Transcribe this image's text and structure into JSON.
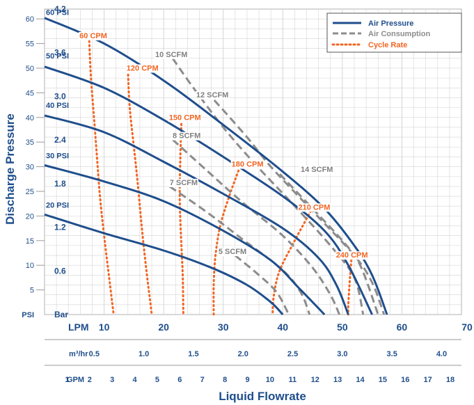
{
  "chart_data": {
    "type": "line",
    "title": "",
    "ylabel": "Discharge Pressure",
    "xlabel": "Liquid Flowrate",
    "grid": true,
    "legend_position": "top-right",
    "colors": {
      "pressure": "#1f4e8c",
      "consumption": "#8c8c8c",
      "cycle": "#f26522",
      "grid": "#c8c8c8"
    },
    "y_axis_psi": {
      "unit": "PSI",
      "ticks": [
        5,
        10,
        15,
        20,
        25,
        30,
        35,
        40,
        45,
        50,
        55,
        60
      ],
      "ylim": [
        0,
        62
      ]
    },
    "y_axis_bar": {
      "unit": "Bar",
      "ticks": [
        "0.6",
        "1.2",
        "1.8",
        "2.4",
        "3.0",
        "3.6",
        "4.2"
      ]
    },
    "x_axis_lpm": {
      "unit": "LPM",
      "ticks": [
        10,
        20,
        30,
        40,
        50,
        60,
        70
      ],
      "xlim": [
        0,
        70
      ]
    },
    "x_axis_m3hr": {
      "unit": "m³/hr",
      "ticks": [
        "0.5",
        "1.0",
        "1.5",
        "2.0",
        "2.5",
        "3.0",
        "3.5",
        "4.0"
      ]
    },
    "x_axis_gpm": {
      "unit": "GPM",
      "ticks": [
        "1",
        "2",
        "3",
        "4",
        "5",
        "6",
        "7",
        "8",
        "9",
        "10",
        "11",
        "12",
        "13",
        "14",
        "15",
        "16",
        "17",
        "18"
      ]
    },
    "legend": [
      {
        "key": "pressure",
        "label": "Air Pressure"
      },
      {
        "key": "consumption",
        "label": "Air Consumption"
      },
      {
        "key": "cycle",
        "label": "Cycle Rate"
      }
    ],
    "air_pressure": [
      {
        "label": "60 PSI",
        "points": [
          [
            0,
            60.2
          ],
          [
            10,
            55.0
          ],
          [
            20,
            47.5
          ],
          [
            30,
            38.5
          ],
          [
            40,
            29.0
          ],
          [
            47,
            21.5
          ],
          [
            52,
            14.0
          ],
          [
            55,
            8.0
          ],
          [
            57.5,
            0
          ]
        ]
      },
      {
        "label": "50 PSI",
        "points": [
          [
            0,
            50.3
          ],
          [
            10,
            46.0
          ],
          [
            20,
            39.5
          ],
          [
            30,
            32.0
          ],
          [
            40,
            24.0
          ],
          [
            47,
            17.0
          ],
          [
            51,
            10.0
          ],
          [
            55,
            0
          ]
        ]
      },
      {
        "label": "40 PSI",
        "points": [
          [
            0,
            40.4
          ],
          [
            10,
            37.0
          ],
          [
            20,
            31.0
          ],
          [
            30,
            24.5
          ],
          [
            40,
            17.5
          ],
          [
            46,
            11.5
          ],
          [
            49,
            6.0
          ],
          [
            51,
            0
          ]
        ]
      },
      {
        "label": "30 PSI",
        "points": [
          [
            0,
            30.3
          ],
          [
            10,
            27.0
          ],
          [
            20,
            23.0
          ],
          [
            30,
            17.0
          ],
          [
            38,
            11.0
          ],
          [
            43,
            5.0
          ],
          [
            47,
            0
          ]
        ]
      },
      {
        "label": "20 PSI",
        "points": [
          [
            0,
            20.3
          ],
          [
            10,
            16.5
          ],
          [
            20,
            13.0
          ],
          [
            28,
            9.5
          ],
          [
            34,
            6.0
          ],
          [
            38,
            2.5
          ],
          [
            40,
            0
          ]
        ]
      }
    ],
    "air_consumption": [
      {
        "label": "12 SCFM",
        "points": [
          [
            28.5,
            43.5
          ],
          [
            34,
            36.0
          ],
          [
            38,
            30.0
          ],
          [
            45,
            21.0
          ],
          [
            52,
            12.0
          ],
          [
            55,
            6.5
          ],
          [
            57,
            0
          ]
        ]
      },
      {
        "label": "14 SCFM",
        "points": [
          [
            39.5,
            28.5
          ],
          [
            45,
            21.5
          ],
          [
            50,
            15.0
          ],
          [
            53,
            10.0
          ],
          [
            56,
            0
          ]
        ]
      },
      {
        "label": "10 SCFM",
        "points": [
          [
            21.5,
            52.0
          ],
          [
            25,
            46.0
          ],
          [
            30,
            38.0
          ],
          [
            35,
            31.0
          ],
          [
            42,
            22.0
          ],
          [
            48,
            14.0
          ],
          [
            52,
            7.5
          ],
          [
            53.5,
            0
          ]
        ]
      },
      {
        "label": "8 SCFM",
        "points": [
          [
            21.5,
            35.5
          ],
          [
            27,
            29.5
          ],
          [
            33,
            23.0
          ],
          [
            40,
            16.0
          ],
          [
            45,
            9.5
          ],
          [
            48,
            4.0
          ],
          [
            49.5,
            0
          ]
        ]
      },
      {
        "label": "7 SCFM",
        "points": [
          [
            21.0,
            26.0
          ],
          [
            27,
            21.0
          ],
          [
            33,
            15.5
          ],
          [
            40,
            9.0
          ],
          [
            43,
            4.5
          ],
          [
            44.5,
            0
          ]
        ]
      },
      {
        "label": "5 SCFM",
        "points": [
          [
            32,
            12.0
          ],
          [
            36,
            8.0
          ],
          [
            39,
            4.5
          ],
          [
            41,
            0
          ]
        ]
      }
    ],
    "cycle_rate": [
      {
        "label": "60 CPM",
        "points": [
          [
            7.5,
            55.5
          ],
          [
            7.8,
            48.0
          ],
          [
            8.3,
            40.0
          ],
          [
            8.8,
            32.0
          ],
          [
            9.3,
            24.0
          ],
          [
            10.0,
            16.0
          ],
          [
            10.8,
            8.0
          ],
          [
            11.6,
            0
          ]
        ]
      },
      {
        "label": "120 CPM",
        "points": [
          [
            14.0,
            49.5
          ],
          [
            14.3,
            42.0
          ],
          [
            15.0,
            34.0
          ],
          [
            15.7,
            26.0
          ],
          [
            16.3,
            18.0
          ],
          [
            17.0,
            10.0
          ],
          [
            17.7,
            3.0
          ],
          [
            18.0,
            0
          ]
        ]
      },
      {
        "label": "150 CPM",
        "points": [
          [
            23.0,
            39.5
          ],
          [
            22.8,
            32.0
          ],
          [
            22.7,
            24.0
          ],
          [
            22.9,
            16.0
          ],
          [
            23.2,
            8.0
          ],
          [
            23.3,
            0
          ]
        ]
      },
      {
        "label": "180 CPM",
        "points": [
          [
            32.8,
            30.0
          ],
          [
            31.0,
            24.0
          ],
          [
            29.5,
            18.0
          ],
          [
            28.7,
            12.0
          ],
          [
            28.4,
            6.0
          ],
          [
            28.4,
            0
          ]
        ]
      },
      {
        "label": "210 CPM",
        "points": [
          [
            44.7,
            21.0
          ],
          [
            42.0,
            15.0
          ],
          [
            39.5,
            9.0
          ],
          [
            38.5,
            4.0
          ],
          [
            38.3,
            0
          ]
        ]
      },
      {
        "label": "240 CPM",
        "points": [
          [
            51.5,
            11.0
          ],
          [
            51.2,
            6.0
          ],
          [
            51.0,
            2.0
          ],
          [
            51.0,
            0
          ]
        ]
      }
    ]
  }
}
